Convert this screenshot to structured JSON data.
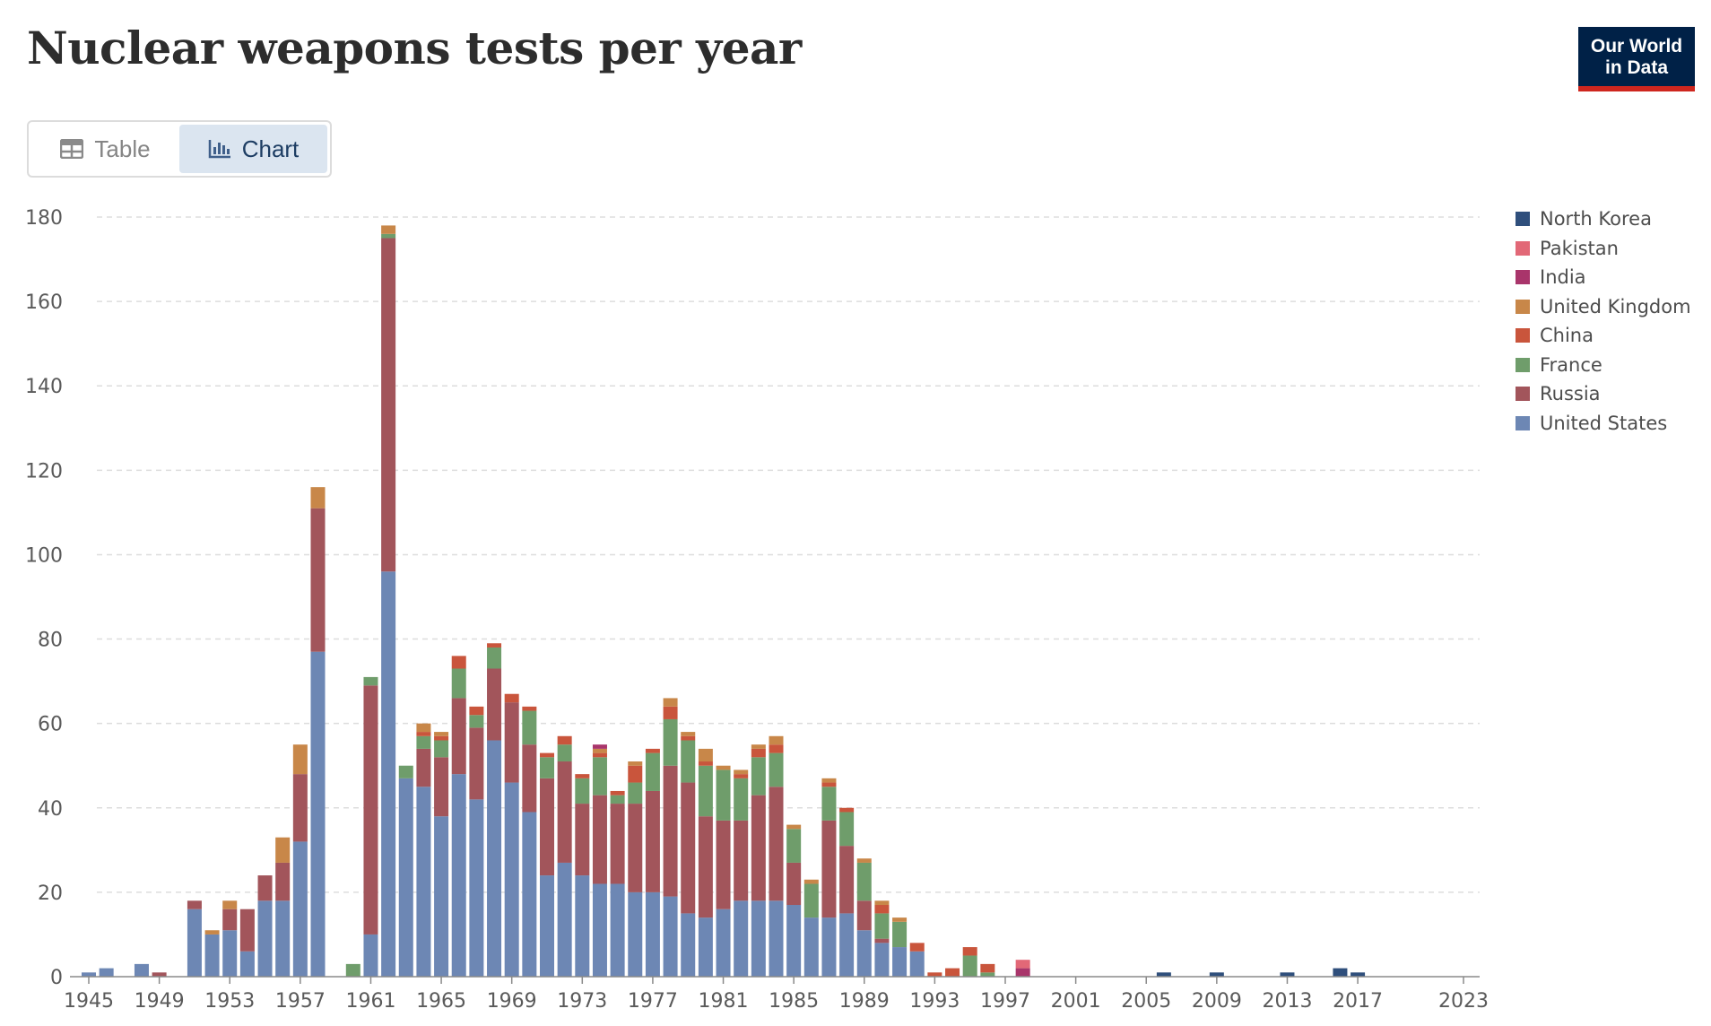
{
  "header": {
    "title": "Nuclear weapons tests per year",
    "logo_line1": "Our World",
    "logo_line2": "in Data"
  },
  "tabs": [
    {
      "label": "Table",
      "icon": "table-icon",
      "active": false
    },
    {
      "label": "Chart",
      "icon": "bar-chart-icon",
      "active": true
    }
  ],
  "chart_data": {
    "type": "bar",
    "stacked": true,
    "title": "Nuclear weapons tests per year",
    "xlabel": "",
    "ylabel": "",
    "ylim": [
      0,
      180
    ],
    "xlim": [
      1945,
      2023
    ],
    "y_ticks": [
      0,
      20,
      40,
      60,
      80,
      100,
      120,
      140,
      160,
      180
    ],
    "x_ticks": [
      1945,
      1949,
      1953,
      1957,
      1961,
      1965,
      1969,
      1973,
      1977,
      1981,
      1985,
      1989,
      1993,
      1997,
      2001,
      2005,
      2009,
      2013,
      2017,
      2023
    ],
    "grid": "horizontal dashed",
    "legend_position": "right",
    "colors": {
      "United States": "#6d87b4",
      "Russia": "#a2555b",
      "France": "#6f9d6b",
      "China": "#c9553c",
      "United Kingdom": "#c88749",
      "India": "#a9356b",
      "Pakistan": "#e26877",
      "North Korea": "#2f4f7c"
    },
    "legend_order": [
      "North Korea",
      "Pakistan",
      "India",
      "United Kingdom",
      "China",
      "France",
      "Russia",
      "United States"
    ],
    "stack_order": [
      "United States",
      "Russia",
      "France",
      "China",
      "United Kingdom",
      "India",
      "Pakistan",
      "North Korea"
    ],
    "x": [
      1945,
      1946,
      1947,
      1948,
      1949,
      1950,
      1951,
      1952,
      1953,
      1954,
      1955,
      1956,
      1957,
      1958,
      1959,
      1960,
      1961,
      1962,
      1963,
      1964,
      1965,
      1966,
      1967,
      1968,
      1969,
      1970,
      1971,
      1972,
      1973,
      1974,
      1975,
      1976,
      1977,
      1978,
      1979,
      1980,
      1981,
      1982,
      1983,
      1984,
      1985,
      1986,
      1987,
      1988,
      1989,
      1990,
      1991,
      1992,
      1993,
      1994,
      1995,
      1996,
      1997,
      1998,
      1999,
      2000,
      2001,
      2002,
      2003,
      2004,
      2005,
      2006,
      2007,
      2008,
      2009,
      2010,
      2011,
      2012,
      2013,
      2014,
      2015,
      2016,
      2017,
      2018,
      2019,
      2020,
      2021,
      2022,
      2023
    ],
    "series": [
      {
        "name": "United States",
        "values": [
          1,
          2,
          0,
          3,
          0,
          0,
          16,
          10,
          11,
          6,
          18,
          18,
          32,
          77,
          0,
          0,
          10,
          96,
          47,
          45,
          38,
          48,
          42,
          56,
          46,
          39,
          24,
          27,
          24,
          22,
          22,
          20,
          20,
          19,
          15,
          14,
          16,
          18,
          18,
          18,
          17,
          14,
          14,
          15,
          11,
          8,
          7,
          6,
          0,
          0,
          0,
          0,
          0,
          0,
          0,
          0,
          0,
          0,
          0,
          0,
          0,
          0,
          0,
          0,
          0,
          0,
          0,
          0,
          0,
          0,
          0,
          0,
          0,
          0,
          0,
          0,
          0,
          0,
          0
        ]
      },
      {
        "name": "Russia",
        "values": [
          0,
          0,
          0,
          0,
          1,
          0,
          2,
          0,
          5,
          10,
          6,
          9,
          16,
          34,
          0,
          0,
          59,
          79,
          0,
          9,
          14,
          18,
          17,
          17,
          19,
          16,
          23,
          24,
          17,
          21,
          19,
          21,
          24,
          31,
          31,
          24,
          21,
          19,
          25,
          27,
          10,
          0,
          23,
          16,
          7,
          1,
          0,
          0,
          0,
          0,
          0,
          0,
          0,
          0,
          0,
          0,
          0,
          0,
          0,
          0,
          0,
          0,
          0,
          0,
          0,
          0,
          0,
          0,
          0,
          0,
          0,
          0,
          0,
          0,
          0,
          0,
          0,
          0,
          0
        ]
      },
      {
        "name": "France",
        "values": [
          0,
          0,
          0,
          0,
          0,
          0,
          0,
          0,
          0,
          0,
          0,
          0,
          0,
          0,
          0,
          3,
          2,
          1,
          3,
          3,
          4,
          7,
          3,
          5,
          0,
          8,
          5,
          4,
          6,
          9,
          2,
          5,
          9,
          11,
          10,
          12,
          12,
          10,
          9,
          8,
          8,
          8,
          8,
          8,
          9,
          6,
          6,
          0,
          0,
          0,
          5,
          1,
          0,
          0,
          0,
          0,
          0,
          0,
          0,
          0,
          0,
          0,
          0,
          0,
          0,
          0,
          0,
          0,
          0,
          0,
          0,
          0,
          0,
          0,
          0,
          0,
          0,
          0,
          0
        ]
      },
      {
        "name": "China",
        "values": [
          0,
          0,
          0,
          0,
          0,
          0,
          0,
          0,
          0,
          0,
          0,
          0,
          0,
          0,
          0,
          0,
          0,
          0,
          0,
          1,
          1,
          3,
          2,
          1,
          2,
          1,
          1,
          2,
          1,
          1,
          1,
          4,
          1,
          3,
          1,
          1,
          0,
          1,
          2,
          2,
          0,
          0,
          1,
          1,
          0,
          2,
          0,
          2,
          1,
          2,
          2,
          2,
          0,
          0,
          0,
          0,
          0,
          0,
          0,
          0,
          0,
          0,
          0,
          0,
          0,
          0,
          0,
          0,
          0,
          0,
          0,
          0,
          0,
          0,
          0,
          0,
          0,
          0,
          0
        ]
      },
      {
        "name": "United Kingdom",
        "values": [
          0,
          0,
          0,
          0,
          0,
          0,
          0,
          1,
          2,
          0,
          0,
          6,
          7,
          5,
          0,
          0,
          0,
          2,
          0,
          2,
          1,
          0,
          0,
          0,
          0,
          0,
          0,
          0,
          0,
          1,
          0,
          1,
          0,
          2,
          1,
          3,
          1,
          1,
          1,
          2,
          1,
          1,
          1,
          0,
          1,
          1,
          1,
          0,
          0,
          0,
          0,
          0,
          0,
          0,
          0,
          0,
          0,
          0,
          0,
          0,
          0,
          0,
          0,
          0,
          0,
          0,
          0,
          0,
          0,
          0,
          0,
          0,
          0,
          0,
          0,
          0,
          0,
          0,
          0
        ]
      },
      {
        "name": "India",
        "values": [
          0,
          0,
          0,
          0,
          0,
          0,
          0,
          0,
          0,
          0,
          0,
          0,
          0,
          0,
          0,
          0,
          0,
          0,
          0,
          0,
          0,
          0,
          0,
          0,
          0,
          0,
          0,
          0,
          0,
          1,
          0,
          0,
          0,
          0,
          0,
          0,
          0,
          0,
          0,
          0,
          0,
          0,
          0,
          0,
          0,
          0,
          0,
          0,
          0,
          0,
          0,
          0,
          0,
          2,
          0,
          0,
          0,
          0,
          0,
          0,
          0,
          0,
          0,
          0,
          0,
          0,
          0,
          0,
          0,
          0,
          0,
          0,
          0,
          0,
          0,
          0,
          0,
          0,
          0
        ]
      },
      {
        "name": "Pakistan",
        "values": [
          0,
          0,
          0,
          0,
          0,
          0,
          0,
          0,
          0,
          0,
          0,
          0,
          0,
          0,
          0,
          0,
          0,
          0,
          0,
          0,
          0,
          0,
          0,
          0,
          0,
          0,
          0,
          0,
          0,
          0,
          0,
          0,
          0,
          0,
          0,
          0,
          0,
          0,
          0,
          0,
          0,
          0,
          0,
          0,
          0,
          0,
          0,
          0,
          0,
          0,
          0,
          0,
          0,
          2,
          0,
          0,
          0,
          0,
          0,
          0,
          0,
          0,
          0,
          0,
          0,
          0,
          0,
          0,
          0,
          0,
          0,
          0,
          0,
          0,
          0,
          0,
          0,
          0,
          0
        ]
      },
      {
        "name": "North Korea",
        "values": [
          0,
          0,
          0,
          0,
          0,
          0,
          0,
          0,
          0,
          0,
          0,
          0,
          0,
          0,
          0,
          0,
          0,
          0,
          0,
          0,
          0,
          0,
          0,
          0,
          0,
          0,
          0,
          0,
          0,
          0,
          0,
          0,
          0,
          0,
          0,
          0,
          0,
          0,
          0,
          0,
          0,
          0,
          0,
          0,
          0,
          0,
          0,
          0,
          0,
          0,
          0,
          0,
          0,
          0,
          0,
          0,
          0,
          0,
          0,
          0,
          0,
          1,
          0,
          0,
          1,
          0,
          0,
          0,
          1,
          0,
          0,
          2,
          1,
          0,
          0,
          0,
          0,
          0,
          0
        ]
      }
    ]
  }
}
